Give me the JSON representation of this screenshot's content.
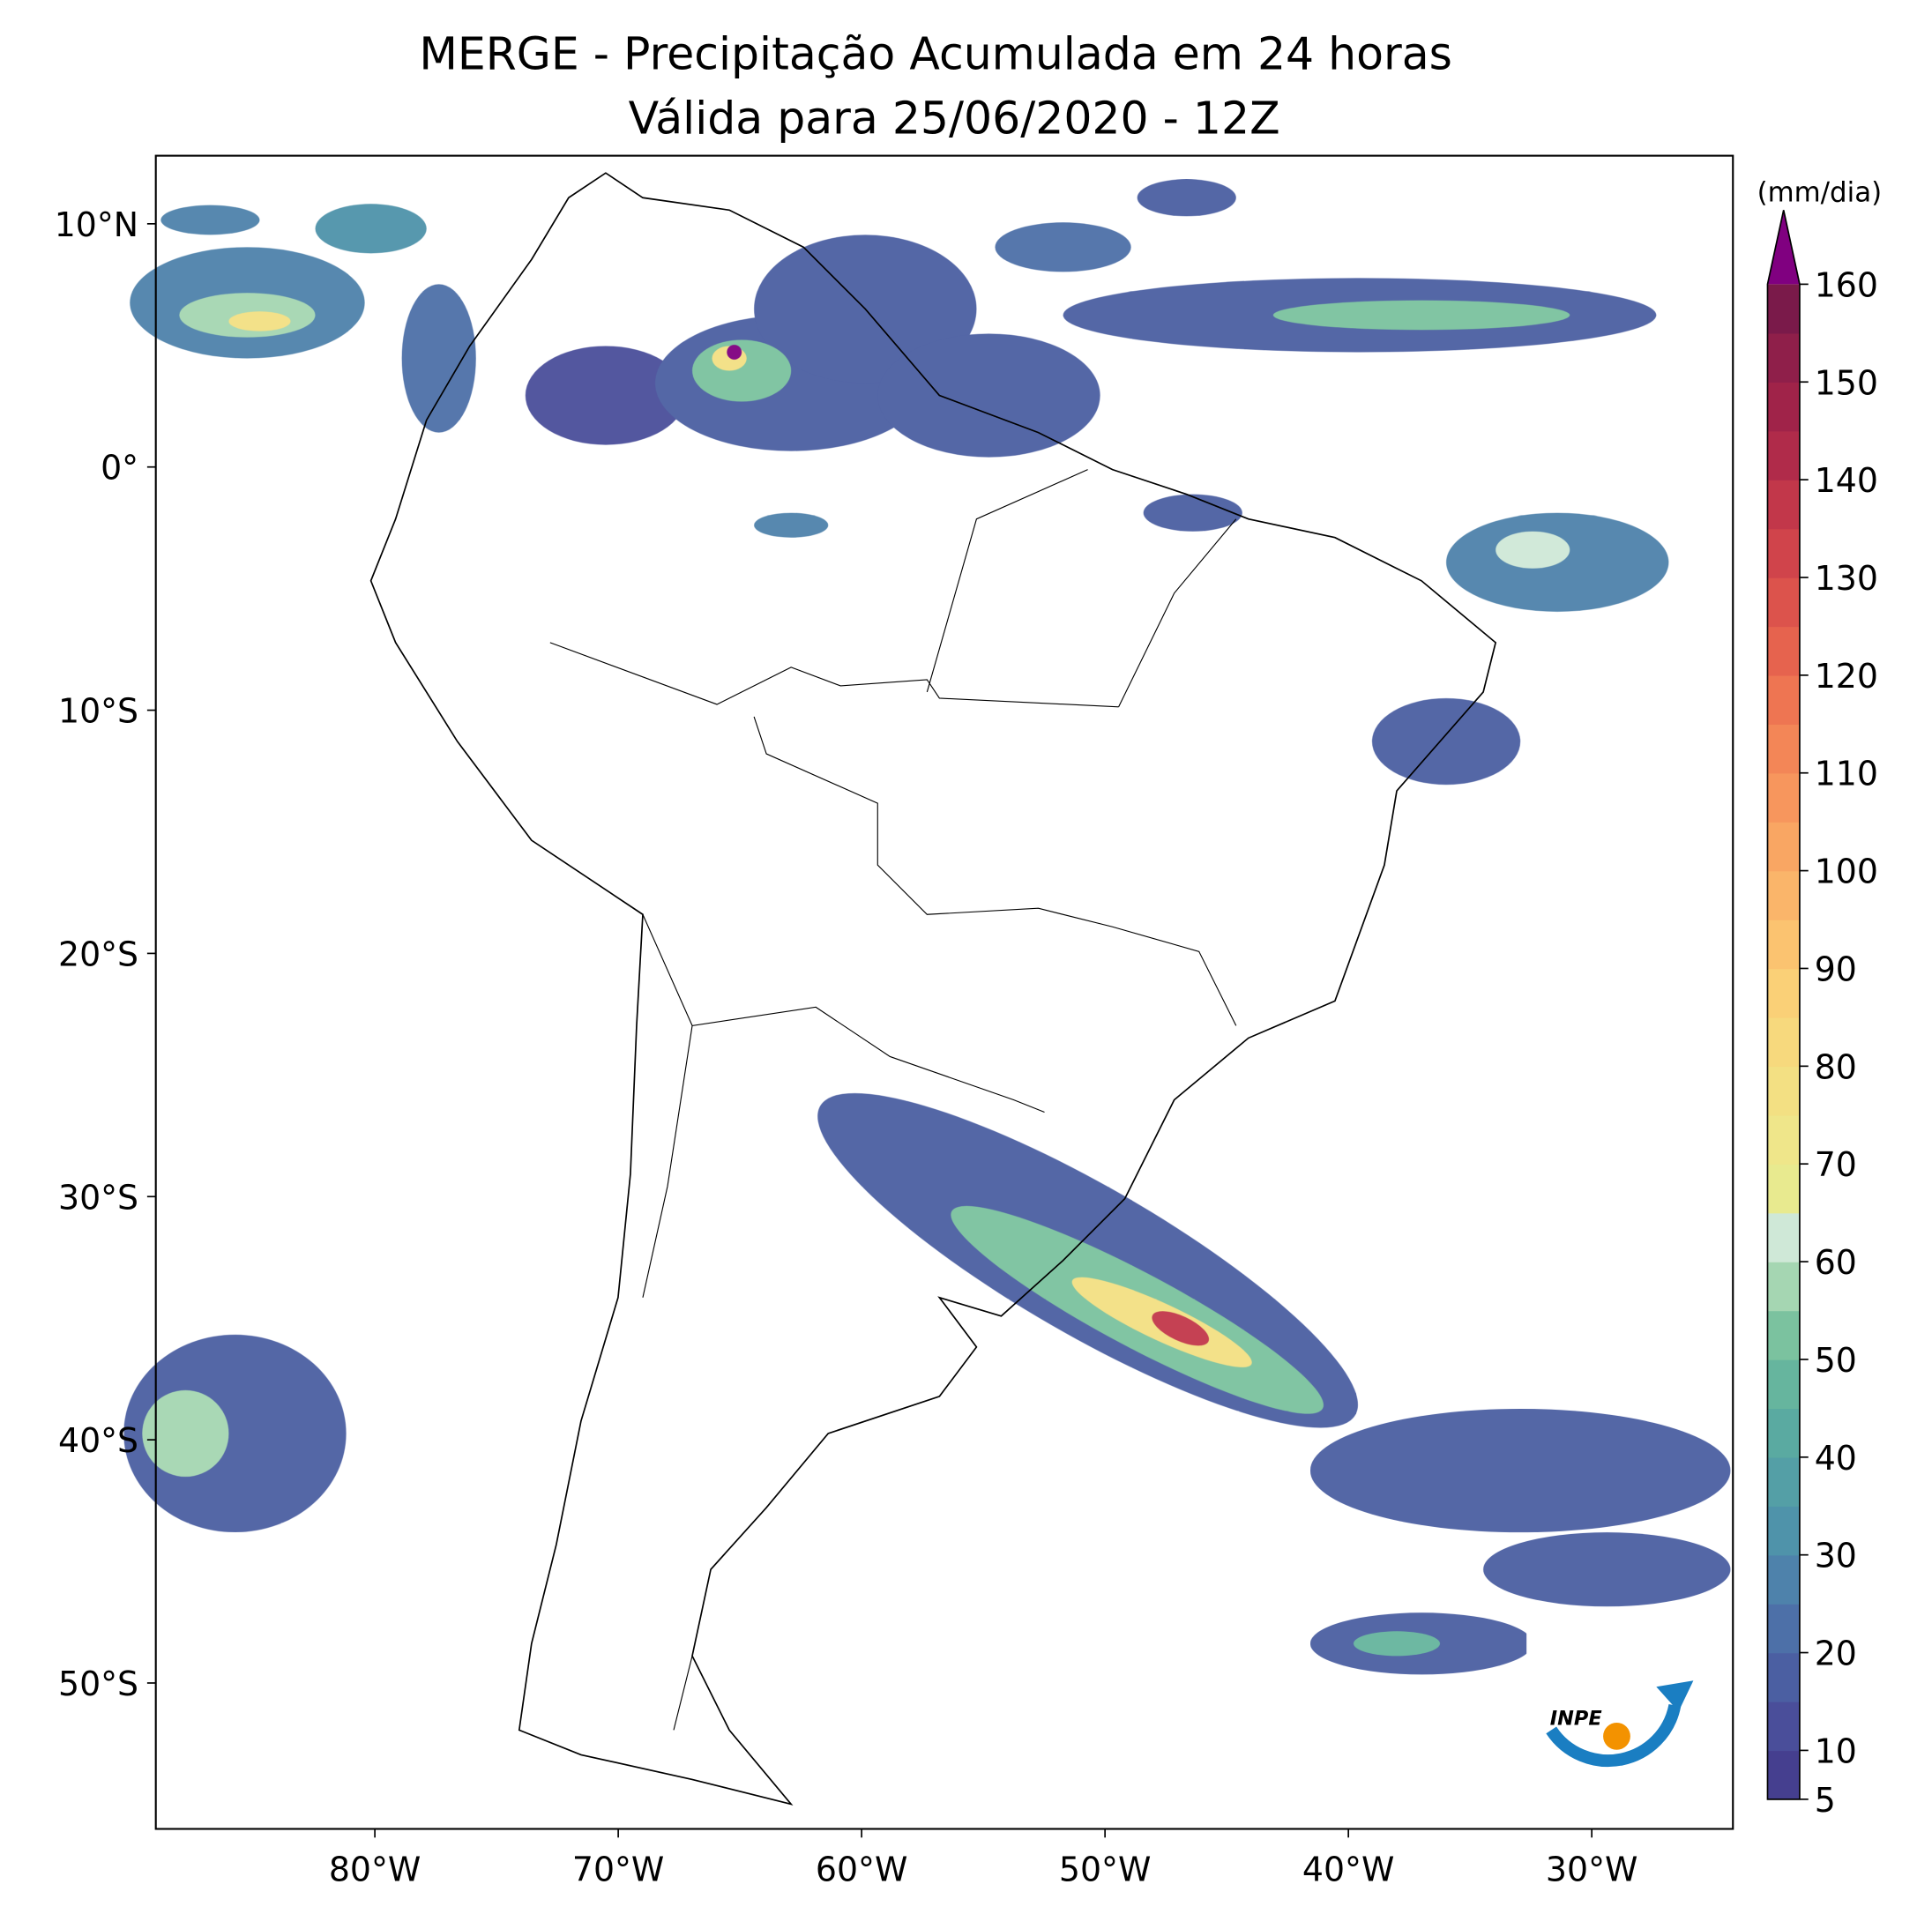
{
  "map": {
    "title": "MERGE - Precipitação Acumulada em 24 horas",
    "subtitle": "Válida para 25/06/2020 - 12Z",
    "xlim": [
      -89,
      -24.2
    ],
    "ylim": [
      -56,
      12.8
    ],
    "xticks": [
      {
        "value": -80,
        "label": "80°W"
      },
      {
        "value": -70,
        "label": "70°W"
      },
      {
        "value": -60,
        "label": "60°W"
      },
      {
        "value": -50,
        "label": "50°W"
      },
      {
        "value": -40,
        "label": "40°W"
      },
      {
        "value": -30,
        "label": "30°W"
      }
    ],
    "yticks": [
      {
        "value": 10,
        "label": "10°N"
      },
      {
        "value": 0,
        "label": "0°"
      },
      {
        "value": -10,
        "label": "10°S"
      },
      {
        "value": -20,
        "label": "20°S"
      },
      {
        "value": -30,
        "label": "30°S"
      },
      {
        "value": -40,
        "label": "40°S"
      },
      {
        "value": -50,
        "label": "50°S"
      }
    ],
    "colorbar": {
      "label": "(mm/dia)",
      "lim": [
        5,
        160
      ],
      "ticks": [
        5,
        10,
        20,
        30,
        40,
        50,
        60,
        70,
        80,
        90,
        100,
        110,
        120,
        130,
        140,
        150,
        160
      ],
      "colors": [
        "#453f8f",
        "#4a4e9a",
        "#4b5fa2",
        "#4d70a8",
        "#4e82ab",
        "#4f93aa",
        "#549fa6",
        "#5aaaa1",
        "#66b59e",
        "#7bc29f",
        "#a5d6b2",
        "#cfe8d7",
        "#e8ea8f",
        "#efe68a",
        "#f3e083",
        "#f7d97d",
        "#fad077",
        "#fbc370",
        "#fab56a",
        "#f9a663",
        "#f7965d",
        "#f38657",
        "#ee7552",
        "#e6634e",
        "#dc534c",
        "#d0444b",
        "#c2374a",
        "#b02b4a",
        "#a02349",
        "#8f1f4a",
        "#7a1a4a"
      ],
      "extend_color": "#800080"
    },
    "logo": "INPE"
  }
}
